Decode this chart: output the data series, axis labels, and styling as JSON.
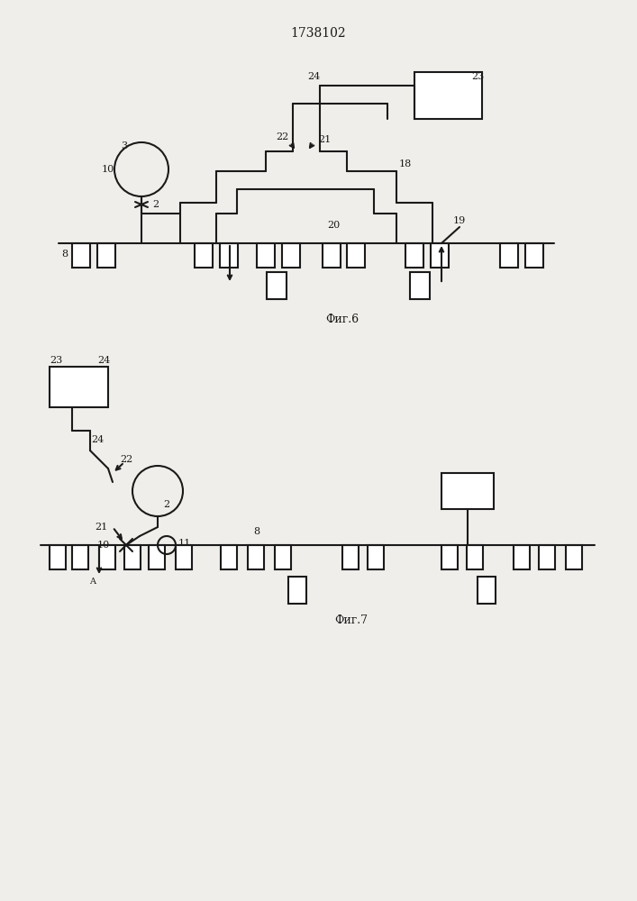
{
  "title": "1738102",
  "fig6_label": "Фиг.6",
  "fig7_label": "Фиг.7",
  "bg_color": "#f0eeea",
  "line_color": "#1a1a1a",
  "lw": 1.5
}
